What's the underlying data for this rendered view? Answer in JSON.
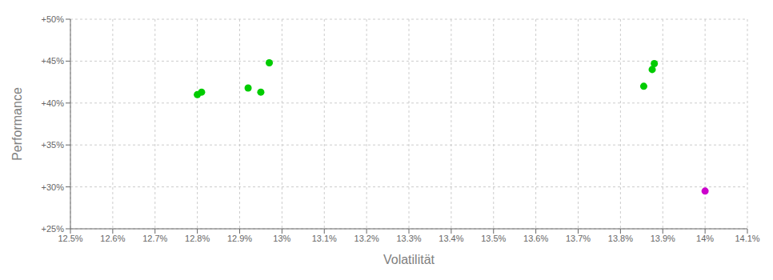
{
  "chart_data": {
    "type": "scatter",
    "x_label": "Volatilität",
    "y_label": "Performance",
    "series": [
      {
        "color": "#00cc00",
        "x": [
          12.8,
          12.81,
          12.92,
          12.95,
          12.97,
          13.855,
          13.875,
          13.88
        ],
        "values": [
          41.0,
          41.3,
          41.8,
          41.3,
          44.8,
          42.0,
          44.0,
          44.7
        ]
      },
      {
        "color": "#cc00cc",
        "x": [
          14.0
        ],
        "values": [
          29.5
        ]
      }
    ],
    "xlim": [
      12.5,
      14.1
    ],
    "ylim": [
      25.0,
      50.0
    ],
    "xticks": [
      {
        "value": 12.5,
        "label": "12.5%"
      },
      {
        "value": 12.6,
        "label": "12.6%"
      },
      {
        "value": 12.7,
        "label": "12.7%"
      },
      {
        "value": 12.8,
        "label": "12.8%"
      },
      {
        "value": 12.9,
        "label": "12.9%"
      },
      {
        "value": 13.0,
        "label": "13%"
      },
      {
        "value": 13.1,
        "label": "13.1%"
      },
      {
        "value": 13.2,
        "label": "13.2%"
      },
      {
        "value": 13.3,
        "label": "13.3%"
      },
      {
        "value": 13.4,
        "label": "13.4%"
      },
      {
        "value": 13.5,
        "label": "13.5%"
      },
      {
        "value": 13.6,
        "label": "13.6%"
      },
      {
        "value": 13.7,
        "label": "13.7%"
      },
      {
        "value": 13.8,
        "label": "13.8%"
      },
      {
        "value": 13.9,
        "label": "13.9%"
      },
      {
        "value": 14.0,
        "label": "14%"
      },
      {
        "value": 14.1,
        "label": "14.1%"
      }
    ],
    "yticks": [
      {
        "value": 25.0,
        "label": "+25%"
      },
      {
        "value": 30.0,
        "label": "+30%"
      },
      {
        "value": 35.0,
        "label": "+35%"
      },
      {
        "value": 40.0,
        "label": "+40%"
      },
      {
        "value": 45.0,
        "label": "+45%"
      },
      {
        "value": 50.0,
        "label": "+50%"
      }
    ],
    "grid": true
  }
}
